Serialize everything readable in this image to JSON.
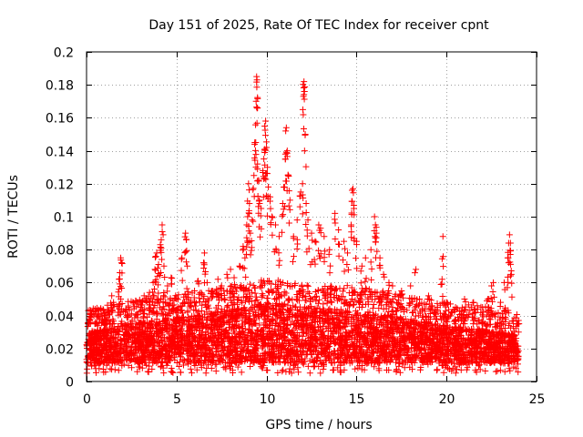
{
  "chart_data": {
    "type": "scatter",
    "title": "Day 151 of 2025, Rate Of TEC Index for receiver cpnt",
    "xlabel": "GPS time / hours",
    "ylabel": "ROTI / TECUs",
    "xlim": [
      0,
      25
    ],
    "ylim": [
      0,
      0.2
    ],
    "grid": true,
    "x_ticks": [
      0,
      5,
      10,
      15,
      20,
      25
    ],
    "x_tick_labels": [
      "0",
      "5",
      "10",
      "15",
      "20",
      "25"
    ],
    "y_ticks": [
      0,
      0.02,
      0.04,
      0.06,
      0.08,
      0.1,
      0.12,
      0.14,
      0.16,
      0.18,
      0.2
    ],
    "y_tick_labels": [
      "0",
      "0.02",
      "0.04",
      "0.06",
      "0.08",
      "0.1",
      "0.12",
      "0.14",
      "0.16",
      "0.18",
      "0.2"
    ],
    "marker": "+",
    "marker_color": "#ff0000",
    "series": [
      {
        "name": "ROTI",
        "color": "#ff0000",
        "points": [
          [
            0.1,
            0.043
          ],
          [
            0.15,
            0.038
          ],
          [
            0.2,
            0.041
          ],
          [
            0.5,
            0.036
          ],
          [
            1.0,
            0.038
          ],
          [
            1.3,
            0.035
          ],
          [
            1.4,
            0.052
          ],
          [
            1.5,
            0.048
          ],
          [
            1.8,
            0.062
          ],
          [
            1.85,
            0.066
          ],
          [
            1.9,
            0.075
          ],
          [
            1.95,
            0.072
          ],
          [
            1.9,
            0.05
          ],
          [
            2.2,
            0.044
          ],
          [
            2.5,
            0.041
          ],
          [
            3.0,
            0.045
          ],
          [
            3.2,
            0.052
          ],
          [
            3.5,
            0.054
          ],
          [
            3.7,
            0.06
          ],
          [
            3.8,
            0.068
          ],
          [
            3.85,
            0.076
          ],
          [
            3.9,
            0.078
          ],
          [
            4.0,
            0.071
          ],
          [
            4.1,
            0.083
          ],
          [
            4.15,
            0.086
          ],
          [
            4.2,
            0.095
          ],
          [
            4.3,
            0.07
          ],
          [
            4.5,
            0.058
          ],
          [
            4.7,
            0.063
          ],
          [
            5.0,
            0.05
          ],
          [
            5.3,
            0.075
          ],
          [
            5.5,
            0.09
          ],
          [
            5.55,
            0.086
          ],
          [
            5.6,
            0.07
          ],
          [
            6.0,
            0.055
          ],
          [
            6.2,
            0.061
          ],
          [
            6.5,
            0.072
          ],
          [
            6.55,
            0.078
          ],
          [
            6.7,
            0.06
          ],
          [
            7.0,
            0.055
          ],
          [
            7.3,
            0.062
          ],
          [
            7.5,
            0.058
          ],
          [
            7.8,
            0.065
          ],
          [
            8.0,
            0.068
          ],
          [
            8.2,
            0.063
          ],
          [
            8.5,
            0.07
          ],
          [
            8.7,
            0.082
          ],
          [
            8.8,
            0.075
          ],
          [
            8.9,
            0.095
          ],
          [
            8.95,
            0.1
          ],
          [
            9.0,
            0.12
          ],
          [
            9.05,
            0.108
          ],
          [
            9.1,
            0.09
          ],
          [
            9.2,
            0.098
          ],
          [
            9.3,
            0.125
          ],
          [
            9.35,
            0.145
          ],
          [
            9.4,
            0.145
          ],
          [
            9.42,
            0.17
          ],
          [
            9.45,
            0.185
          ],
          [
            9.47,
            0.183
          ],
          [
            9.5,
            0.132
          ],
          [
            9.55,
            0.122
          ],
          [
            9.6,
            0.11
          ],
          [
            9.7,
            0.105
          ],
          [
            9.8,
            0.128
          ],
          [
            9.85,
            0.135
          ],
          [
            9.9,
            0.155
          ],
          [
            9.95,
            0.158
          ],
          [
            10.0,
            0.142
          ],
          [
            10.05,
            0.13
          ],
          [
            10.1,
            0.118
          ],
          [
            10.2,
            0.112
          ],
          [
            10.3,
            0.1
          ],
          [
            10.5,
            0.095
          ],
          [
            10.7,
            0.088
          ],
          [
            10.9,
            0.108
          ],
          [
            11.0,
            0.118
          ],
          [
            11.05,
            0.138
          ],
          [
            11.1,
            0.154
          ],
          [
            11.15,
            0.14
          ],
          [
            11.2,
            0.125
          ],
          [
            11.3,
            0.11
          ],
          [
            11.5,
            0.088
          ],
          [
            11.7,
            0.098
          ],
          [
            11.9,
            0.115
          ],
          [
            12.0,
            0.12
          ],
          [
            12.05,
            0.173
          ],
          [
            12.08,
            0.182
          ],
          [
            12.1,
            0.176
          ],
          [
            12.15,
            0.15
          ],
          [
            12.2,
            0.108
          ],
          [
            12.3,
            0.098
          ],
          [
            12.5,
            0.09
          ],
          [
            12.7,
            0.085
          ],
          [
            12.9,
            0.095
          ],
          [
            13.0,
            0.093
          ],
          [
            13.2,
            0.088
          ],
          [
            13.5,
            0.08
          ],
          [
            13.8,
            0.102
          ],
          [
            14.0,
            0.092
          ],
          [
            14.3,
            0.085
          ],
          [
            14.5,
            0.078
          ],
          [
            14.7,
            0.095
          ],
          [
            14.75,
            0.116
          ],
          [
            14.8,
            0.117
          ],
          [
            14.85,
            0.105
          ],
          [
            15.0,
            0.085
          ],
          [
            15.3,
            0.07
          ],
          [
            15.5,
            0.075
          ],
          [
            15.8,
            0.08
          ],
          [
            16.0,
            0.1
          ],
          [
            16.05,
            0.095
          ],
          [
            16.1,
            0.09
          ],
          [
            16.3,
            0.075
          ],
          [
            16.5,
            0.065
          ],
          [
            16.8,
            0.06
          ],
          [
            17.0,
            0.058
          ],
          [
            17.5,
            0.055
          ],
          [
            18.0,
            0.058
          ],
          [
            18.3,
            0.068
          ],
          [
            18.5,
            0.05
          ],
          [
            19.0,
            0.052
          ],
          [
            19.5,
            0.045
          ],
          [
            19.75,
            0.062
          ],
          [
            19.8,
            0.088
          ],
          [
            20.0,
            0.048
          ],
          [
            20.5,
            0.045
          ],
          [
            21.0,
            0.05
          ],
          [
            21.5,
            0.048
          ],
          [
            22.0,
            0.045
          ],
          [
            22.3,
            0.05
          ],
          [
            22.5,
            0.058
          ],
          [
            22.6,
            0.06
          ],
          [
            23.0,
            0.048
          ],
          [
            23.2,
            0.06
          ],
          [
            23.4,
            0.075
          ],
          [
            23.45,
            0.084
          ],
          [
            23.5,
            0.089
          ],
          [
            23.55,
            0.084
          ],
          [
            23.6,
            0.065
          ],
          [
            23.9,
            0.035
          ],
          [
            24.0,
            0.03
          ]
        ]
      }
    ],
    "dense_band": {
      "description": "Dense cluster of points across the full day",
      "x_range": [
        0,
        24
      ],
      "typical_y_range": [
        0.005,
        0.045
      ],
      "upper_envelope": [
        [
          0,
          0.032
        ],
        [
          2,
          0.036
        ],
        [
          4,
          0.04
        ],
        [
          6,
          0.042
        ],
        [
          8,
          0.046
        ],
        [
          10,
          0.05
        ],
        [
          12,
          0.048
        ],
        [
          14,
          0.046
        ],
        [
          16,
          0.044
        ],
        [
          18,
          0.04
        ],
        [
          20,
          0.036
        ],
        [
          22,
          0.034
        ],
        [
          24,
          0.03
        ]
      ]
    }
  }
}
